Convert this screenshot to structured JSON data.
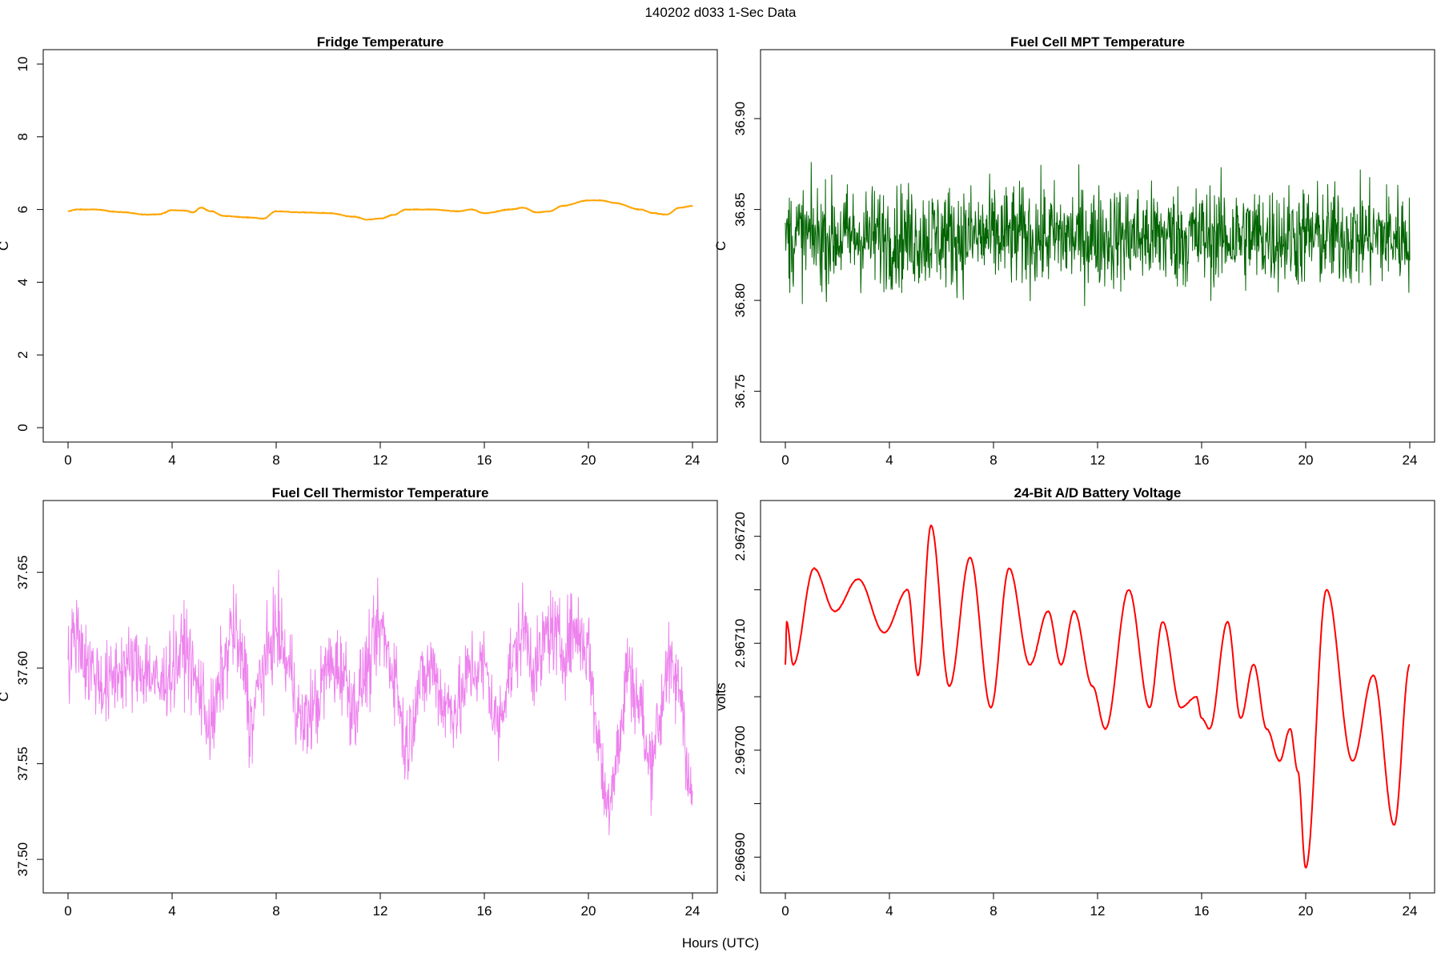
{
  "header": {
    "title": "140202   d033   1-Sec Data"
  },
  "footer": {
    "xlabel": "Hours (UTC)"
  },
  "chart_data": [
    {
      "type": "line",
      "title": "Fridge Temperature",
      "ylabel": "C",
      "xlabel": "Hours (UTC)",
      "color": "#FFA500",
      "xlim": [
        0,
        24
      ],
      "ylim": [
        0,
        10
      ],
      "xticks": [
        0,
        4,
        8,
        12,
        16,
        20,
        24
      ],
      "yticks": [
        0,
        2,
        4,
        6,
        8,
        10
      ],
      "ytick_labels": [
        "0",
        "2",
        "4",
        "6",
        "8",
        "10"
      ],
      "noise": 0.01,
      "series": [
        {
          "x": [
            0,
            0.3,
            1,
            2,
            3,
            3.5,
            4,
            4.5,
            4.8,
            5.1,
            5.5,
            6,
            7,
            7.5,
            8,
            9,
            10,
            11,
            11.5,
            12,
            12.5,
            13,
            14,
            15,
            15.5,
            16,
            17,
            17.5,
            18,
            18.5,
            19,
            20,
            20.5,
            21,
            22,
            22.5,
            23,
            23.5,
            24
          ],
          "y": [
            5.95,
            6.0,
            6.0,
            5.93,
            5.86,
            5.87,
            5.98,
            5.97,
            5.92,
            6.05,
            5.95,
            5.82,
            5.78,
            5.75,
            5.95,
            5.92,
            5.9,
            5.8,
            5.72,
            5.75,
            5.85,
            6.0,
            6.0,
            5.95,
            6.0,
            5.9,
            6.0,
            6.05,
            5.92,
            5.95,
            6.1,
            6.25,
            6.25,
            6.18,
            6.0,
            5.9,
            5.86,
            6.05,
            6.1
          ]
        }
      ]
    },
    {
      "type": "line",
      "title": "Fuel Cell MPT Temperature",
      "ylabel": "C",
      "xlabel": "Hours (UTC)",
      "color": "#006400",
      "xlim": [
        0,
        24
      ],
      "ylim": [
        36.73,
        36.93
      ],
      "xticks": [
        0,
        4,
        8,
        12,
        16,
        20,
        24
      ],
      "yticks": [
        36.75,
        36.8,
        36.85,
        36.9
      ],
      "ytick_labels": [
        "36.75",
        "36.80",
        "36.85",
        "36.90"
      ],
      "noise": 0.028,
      "series": [
        {
          "x": [
            0,
            2,
            4,
            6,
            8,
            10,
            12,
            14,
            16,
            18,
            20,
            22,
            24
          ],
          "y": [
            36.835,
            36.835,
            36.835,
            36.835,
            36.835,
            36.835,
            36.835,
            36.835,
            36.835,
            36.835,
            36.835,
            36.835,
            36.835
          ]
        }
      ]
    },
    {
      "type": "line",
      "title": "Fuel Cell Thermistor Temperature",
      "ylabel": "C",
      "xlabel": "Hours (UTC)",
      "color": "#EE82EE",
      "xlim": [
        0,
        24
      ],
      "ylim": [
        37.49,
        37.68
      ],
      "xticks": [
        0,
        4,
        8,
        12,
        16,
        20,
        24
      ],
      "yticks": [
        37.5,
        37.55,
        37.6,
        37.65
      ],
      "ytick_labels": [
        "37.50",
        "37.55",
        "37.60",
        "37.65"
      ],
      "noise": 0.022,
      "series": [
        {
          "x": [
            0,
            0.3,
            0.8,
            1.5,
            2,
            3,
            3.5,
            4,
            4.5,
            5,
            5.5,
            6,
            6.3,
            6.8,
            7,
            7.5,
            8,
            8.5,
            9,
            9.5,
            10,
            10.5,
            11,
            11.5,
            12,
            12.5,
            13,
            13.5,
            14,
            14.5,
            15,
            15.5,
            16,
            16.5,
            17,
            17.5,
            18,
            18.5,
            19,
            19.5,
            20,
            20.3,
            20.7,
            21.2,
            21.5,
            22,
            22.3,
            22.7,
            23,
            23.5,
            24
          ],
          "y": [
            37.6,
            37.62,
            37.6,
            37.59,
            37.6,
            37.6,
            37.59,
            37.6,
            37.61,
            37.59,
            37.57,
            37.6,
            37.62,
            37.6,
            37.57,
            37.6,
            37.62,
            37.6,
            37.57,
            37.58,
            37.6,
            37.6,
            37.58,
            37.6,
            37.62,
            37.6,
            37.56,
            37.59,
            37.6,
            37.58,
            37.58,
            37.6,
            37.6,
            37.57,
            37.6,
            37.62,
            37.6,
            37.62,
            37.61,
            37.62,
            37.61,
            37.57,
            37.53,
            37.56,
            37.6,
            37.58,
            37.55,
            37.57,
            37.6,
            37.59,
            37.53
          ]
        }
      ]
    },
    {
      "type": "line",
      "title": "24-Bit A/D Battery Voltage",
      "ylabel": "volts",
      "xlabel": "Hours (UTC)",
      "color": "#FF0000",
      "xlim": [
        0,
        24
      ],
      "ylim": [
        2.96688,
        2.96722
      ],
      "xticks": [
        0,
        4,
        8,
        12,
        16,
        20,
        24
      ],
      "yticks": [
        2.9669,
        2.96695,
        2.967,
        2.96705,
        2.9671,
        2.96715,
        2.9672
      ],
      "ytick_labels": [
        "2.96690",
        "",
        "2.96700",
        "",
        "2.96710",
        "",
        "2.96720"
      ],
      "noise": 4e-07,
      "series": [
        {
          "x": [
            0,
            0.05,
            0.3,
            1.1,
            1.9,
            2.8,
            3.8,
            4.7,
            5.1,
            5.6,
            6.3,
            7.1,
            7.9,
            8.6,
            9.4,
            10.1,
            10.6,
            11.1,
            11.8,
            12.3,
            13.2,
            14.0,
            14.5,
            15.2,
            15.8,
            16.0,
            16.3,
            17.0,
            17.5,
            18.0,
            18.5,
            19.0,
            19.4,
            19.7,
            20.0,
            20.8,
            21.8,
            22.6,
            23.4,
            24
          ],
          "y": [
            2.96708,
            2.96712,
            2.96708,
            2.96717,
            2.96713,
            2.96716,
            2.96711,
            2.96715,
            2.96707,
            2.96721,
            2.96706,
            2.96718,
            2.96704,
            2.96717,
            2.96708,
            2.96713,
            2.96708,
            2.96713,
            2.96706,
            2.96702,
            2.96715,
            2.96704,
            2.96712,
            2.96704,
            2.96705,
            2.96703,
            2.96702,
            2.96712,
            2.96703,
            2.96708,
            2.96702,
            2.96699,
            2.96702,
            2.96698,
            2.96689,
            2.96715,
            2.96699,
            2.96707,
            2.96693,
            2.96708
          ]
        }
      ]
    }
  ]
}
